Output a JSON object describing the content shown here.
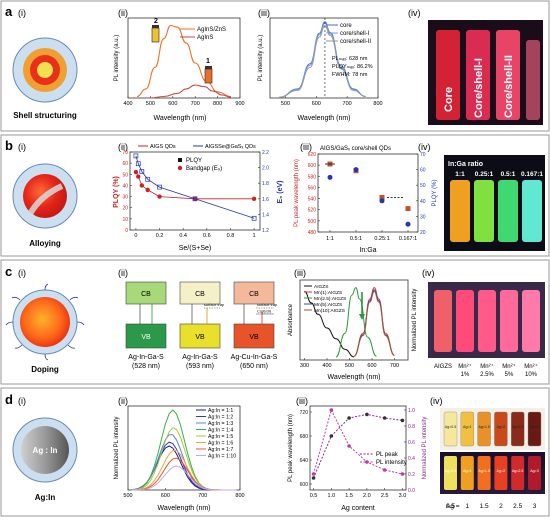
{
  "panel_a": {
    "letter": "a",
    "sub": [
      "(i)",
      "(ii)",
      "(iii)",
      "(iv)"
    ],
    "caption_i": "Shell structuring",
    "ii": {
      "ylabel": "PL intensity (a.u.)",
      "xlabel": "Wavelength (nm)",
      "xticks": [
        "400",
        "500",
        "600",
        "700",
        "800",
        "900"
      ],
      "legend": [
        "AgInS/ZnS",
        "AgInS"
      ],
      "vial_labels": [
        "2",
        "1"
      ]
    },
    "iii": {
      "ylabel": "PL intensity (a.u.)",
      "xlabel": "Wavelength (nm)",
      "xticks": [
        "500",
        "600",
        "700",
        "800"
      ],
      "legend": [
        "core",
        "core/shell-I",
        "core/shell-II"
      ],
      "note_lines": [
        "PLₘₐₓ: 628 nm",
        "PLQYₘₐₓ: 86.2%",
        "FWHM: 78 nm"
      ]
    },
    "iv_labels": [
      "Core",
      "Core/shell-I",
      "Core/shell-II"
    ]
  },
  "panel_b": {
    "letter": "b",
    "sub": [
      "(i)",
      "(ii)",
      "(iii)",
      "(iv)"
    ],
    "caption_i": "Alloying",
    "ii": {
      "top_legend": [
        "AIGS QDs",
        "AIGSSe@GaSₓ QDs"
      ],
      "legend": [
        "PLQY",
        "Bandgap (E₉)"
      ],
      "ylabel_left": "PLQY (%)",
      "ylabel_right": "E₉ (eV)",
      "xlabel": "Se/(S+Se)",
      "xticks": [
        "0",
        "0.2",
        "0.4",
        "0.6",
        "0.8",
        "1"
      ],
      "yticks_left": [
        "0",
        "10",
        "20",
        "30",
        "40",
        "50",
        "60",
        "70"
      ],
      "yticks_right": [
        "1.2",
        "1.4",
        "1.6",
        "1.8",
        "2.0",
        "2.2"
      ]
    },
    "iii": {
      "title": "AIGS/GaSₓ core/shell QDs",
      "ylabel_left": "PL peak wavelength (nm)",
      "ylabel_right": "PLQY (%)",
      "xlabel": "In:Ga",
      "xticks": [
        "1:1",
        "0.5:1",
        "0.25:1",
        "0.167:1"
      ],
      "yticks_left": [
        "480",
        "500",
        "520",
        "540",
        "560",
        "580",
        "600",
        "620"
      ],
      "yticks_right": [
        "20",
        "30",
        "40",
        "50",
        "60",
        "70"
      ]
    },
    "iv": {
      "title": "In:Ga ratio",
      "labels": [
        "1:1",
        "0.25:1",
        "0.5:1",
        "0.167:1"
      ]
    }
  },
  "panel_c": {
    "letter": "c",
    "sub": [
      "(i)",
      "(ii)",
      "(iii)",
      "(iv)"
    ],
    "caption_i": "Doping",
    "ii": {
      "cb": "CB",
      "vb": "VB",
      "trap": "surface trap",
      "cu": "Cu(I)/(II)",
      "compounds": [
        "Ag-In-Ga-S",
        "Ag-In-Ga-S",
        "Ag-Cu-In-Ga-S"
      ],
      "wavelengths": [
        "(528 nm)",
        "(593 nm)",
        "(650 nm)"
      ]
    },
    "iii": {
      "ylabel_left": "Absorbance",
      "ylabel_right": "Normalized PL intensity",
      "xlabel": "Wavelength (nm)",
      "xticks": [
        "300",
        "400",
        "500",
        "600",
        "700"
      ],
      "legend": [
        "AIGZS",
        "Mn(1):AIGZS",
        "Mn(2.5):AIGZS",
        "Mn(5):AIGZS",
        "Mn(10):AIGZS"
      ]
    },
    "iv": {
      "labels": [
        "AIGZS",
        "Mn²⁺",
        "Mn²⁺",
        "Mn²⁺",
        "Mn²⁺"
      ],
      "pct": [
        "",
        "1%",
        "2.5%",
        "5%",
        "10%"
      ]
    }
  },
  "panel_d": {
    "letter": "d",
    "sub": [
      "(i)",
      "(ii)",
      "(iii)",
      "(iv)"
    ],
    "caption_i": "Ag:In",
    "circle_label": "Ag : In",
    "ii": {
      "ylabel": "Normalized PL intensity",
      "xlabel": "Wavelength (nm)",
      "xticks": [
        "500",
        "600",
        "700",
        "800"
      ],
      "legend": [
        "Ag:In = 1:1",
        "Ag:In = 1:2",
        "Ag:In = 1:3",
        "Ag:In = 1:4",
        "Ag:In = 1:5",
        "Ag:In = 1:6",
        "Ag:In = 1:7",
        "Ag:In = 1:10"
      ]
    },
    "iii": {
      "ylabel_left": "PL peak wavelength (nm)",
      "ylabel_right": "Normalized PL intensity",
      "xlabel": "Ag content",
      "xticks": [
        "0.5",
        "1.0",
        "1.5",
        "2.0",
        "2.5",
        "3.0"
      ],
      "yticks_left": [
        "600",
        "640",
        "680",
        "720"
      ],
      "yticks_right": [
        "0.0",
        "0.2",
        "0.4",
        "0.6",
        "0.8",
        "1.0"
      ],
      "legend": [
        "PL peak",
        "PL intensity"
      ]
    },
    "iv": {
      "ag_label": "Ag =",
      "values": [
        "0.5",
        "1",
        "1.5",
        "2",
        "2.5",
        "3"
      ],
      "tube_labels": [
        "Ag=0.5",
        "Ag=1",
        "Ag=1.5",
        "Ag=2",
        "Ag=2.5",
        "Ag=3"
      ]
    }
  },
  "chart_data": [
    {
      "type": "line",
      "panel": "a(ii)",
      "xlabel": "Wavelength (nm)",
      "ylabel": "PL intensity (a.u.)",
      "xlim": [
        400,
        900
      ],
      "series": [
        {
          "name": "AgInS/ZnS",
          "color": "#e8742c",
          "x": [
            440,
            480,
            520,
            560,
            590,
            620,
            660,
            700,
            750,
            800,
            860
          ],
          "y": [
            0.02,
            0.12,
            0.4,
            0.78,
            0.95,
            0.93,
            0.72,
            0.46,
            0.22,
            0.08,
            0.02
          ]
        },
        {
          "name": "AgInS",
          "color": "#c94a4a",
          "x": [
            500,
            560,
            620,
            660,
            700,
            740,
            780,
            820,
            860
          ],
          "y": [
            0.0,
            0.02,
            0.06,
            0.12,
            0.17,
            0.15,
            0.09,
            0.04,
            0.01
          ]
        }
      ]
    },
    {
      "type": "line",
      "panel": "a(iii)",
      "xlabel": "Wavelength (nm)",
      "ylabel": "PL intensity (a.u.)",
      "xlim": [
        450,
        800
      ],
      "series": [
        {
          "name": "core",
          "color": "#3a6fd8",
          "x": [
            480,
            540,
            580,
            610,
            628,
            645,
            680,
            720,
            760
          ],
          "y": [
            0.01,
            0.12,
            0.45,
            0.85,
            1.0,
            0.86,
            0.42,
            0.12,
            0.02
          ]
        },
        {
          "name": "core/shell-I",
          "color": "#7a9ee8",
          "x": [
            480,
            540,
            580,
            610,
            628,
            645,
            680,
            720,
            760
          ],
          "y": [
            0.01,
            0.11,
            0.43,
            0.83,
            0.98,
            0.84,
            0.4,
            0.11,
            0.02
          ]
        },
        {
          "name": "core/shell-II",
          "color": "#9a9a9a",
          "x": [
            480,
            540,
            580,
            610,
            628,
            645,
            680,
            720,
            760
          ],
          "y": [
            0.01,
            0.1,
            0.4,
            0.8,
            0.95,
            0.82,
            0.38,
            0.1,
            0.02
          ]
        }
      ]
    },
    {
      "type": "scatter",
      "panel": "b(ii)",
      "xlabel": "Se/(S+Se)",
      "series": [
        {
          "name": "PLQY",
          "axis": "left",
          "x": [
            0,
            0.02,
            0.05,
            0.1,
            0.2,
            0.5,
            1.0
          ],
          "y": [
            52,
            48,
            40,
            36,
            30,
            28,
            28
          ]
        },
        {
          "name": "Bandgap (E₉)",
          "axis": "right",
          "x": [
            0,
            0.02,
            0.05,
            0.1,
            0.2,
            0.5,
            1.0
          ],
          "y": [
            2.15,
            2.05,
            1.95,
            1.85,
            1.75,
            1.6,
            1.35
          ]
        }
      ]
    },
    {
      "type": "scatter",
      "panel": "b(iii)",
      "xlabel": "In:Ga",
      "categories": [
        "1:1",
        "0.5:1",
        "0.25:1",
        "0.167:1"
      ],
      "series": [
        {
          "name": "PL peak wavelength",
          "axis": "left",
          "values": [
            602,
            590,
            542,
            522
          ]
        },
        {
          "name": "PLQY",
          "axis": "right",
          "values": [
            55,
            60,
            40,
            25
          ]
        }
      ]
    },
    {
      "type": "line",
      "panel": "c(iii)",
      "xlabel": "Wavelength (nm)",
      "xlim": [
        300,
        750
      ],
      "series": [
        {
          "name": "AIGZS",
          "color": "#111111",
          "x": [
            300,
            330,
            360,
            400,
            440,
            480,
            520
          ],
          "y": [
            0.9,
            0.75,
            0.6,
            0.42,
            0.28,
            0.14,
            0.04
          ]
        },
        {
          "name": "Mn(1):AIGZS",
          "color": "#d23a3a",
          "x": [
            520,
            560,
            590,
            610,
            630,
            660,
            700
          ],
          "y": [
            0.05,
            0.35,
            0.8,
            0.95,
            0.8,
            0.35,
            0.06
          ]
        },
        {
          "name": "Mn(2.5):AIGZS",
          "color": "#2a9a3a",
          "x": [
            440,
            480,
            510,
            528,
            545,
            580,
            620
          ],
          "y": [
            0.04,
            0.35,
            0.85,
            0.95,
            0.8,
            0.3,
            0.05
          ]
        },
        {
          "name": "Mn(5):AIGZS",
          "color": "#2d47c8",
          "x": [
            520,
            560,
            590,
            610,
            630,
            660,
            700
          ],
          "y": [
            0.05,
            0.33,
            0.78,
            0.92,
            0.78,
            0.33,
            0.06
          ]
        },
        {
          "name": "Mn(10):AIGZS",
          "color": "#a05a2a",
          "x": [
            520,
            560,
            590,
            610,
            630,
            660,
            700
          ],
          "y": [
            0.05,
            0.32,
            0.76,
            0.9,
            0.76,
            0.32,
            0.06
          ]
        }
      ]
    },
    {
      "type": "line",
      "panel": "d(ii)",
      "xlabel": "Wavelength (nm)",
      "ylabel": "Normalized PL intensity",
      "xlim": [
        500,
        800
      ],
      "series": [
        {
          "name": "Ag:In = 1:1",
          "color": "#1a1a9a",
          "peak": 610,
          "amp": 0.55
        },
        {
          "name": "Ag:In = 1:2",
          "color": "#3434c8",
          "peak": 612,
          "amp": 0.6
        },
        {
          "name": "Ag:In = 1:3",
          "color": "#5a8ad8",
          "peak": 615,
          "amp": 0.7
        },
        {
          "name": "Ag:In = 1:4",
          "color": "#3ab04a",
          "peak": 620,
          "amp": 1.0
        },
        {
          "name": "Ag:In = 1:5",
          "color": "#a8c83a",
          "peak": 622,
          "amp": 0.78
        },
        {
          "name": "Ag:In = 1:6",
          "color": "#e8a83a",
          "peak": 625,
          "amp": 0.5
        },
        {
          "name": "Ag:In = 1:7",
          "color": "#e85a2a",
          "peak": 628,
          "amp": 0.4
        },
        {
          "name": "Ag:In = 1:10",
          "color": "#c8a8e8",
          "peak": 630,
          "amp": 0.3
        }
      ]
    },
    {
      "type": "line",
      "panel": "d(iii)",
      "xlabel": "Ag content",
      "x": [
        0.5,
        1.0,
        1.5,
        2.0,
        2.5,
        3.0
      ],
      "series": [
        {
          "name": "PL peak",
          "axis": "left",
          "values": [
            610,
            680,
            710,
            716,
            710,
            706
          ]
        },
        {
          "name": "PL intensity",
          "axis": "right",
          "values": [
            0.2,
            1.0,
            0.55,
            0.35,
            0.25,
            0.2
          ]
        }
      ]
    }
  ]
}
